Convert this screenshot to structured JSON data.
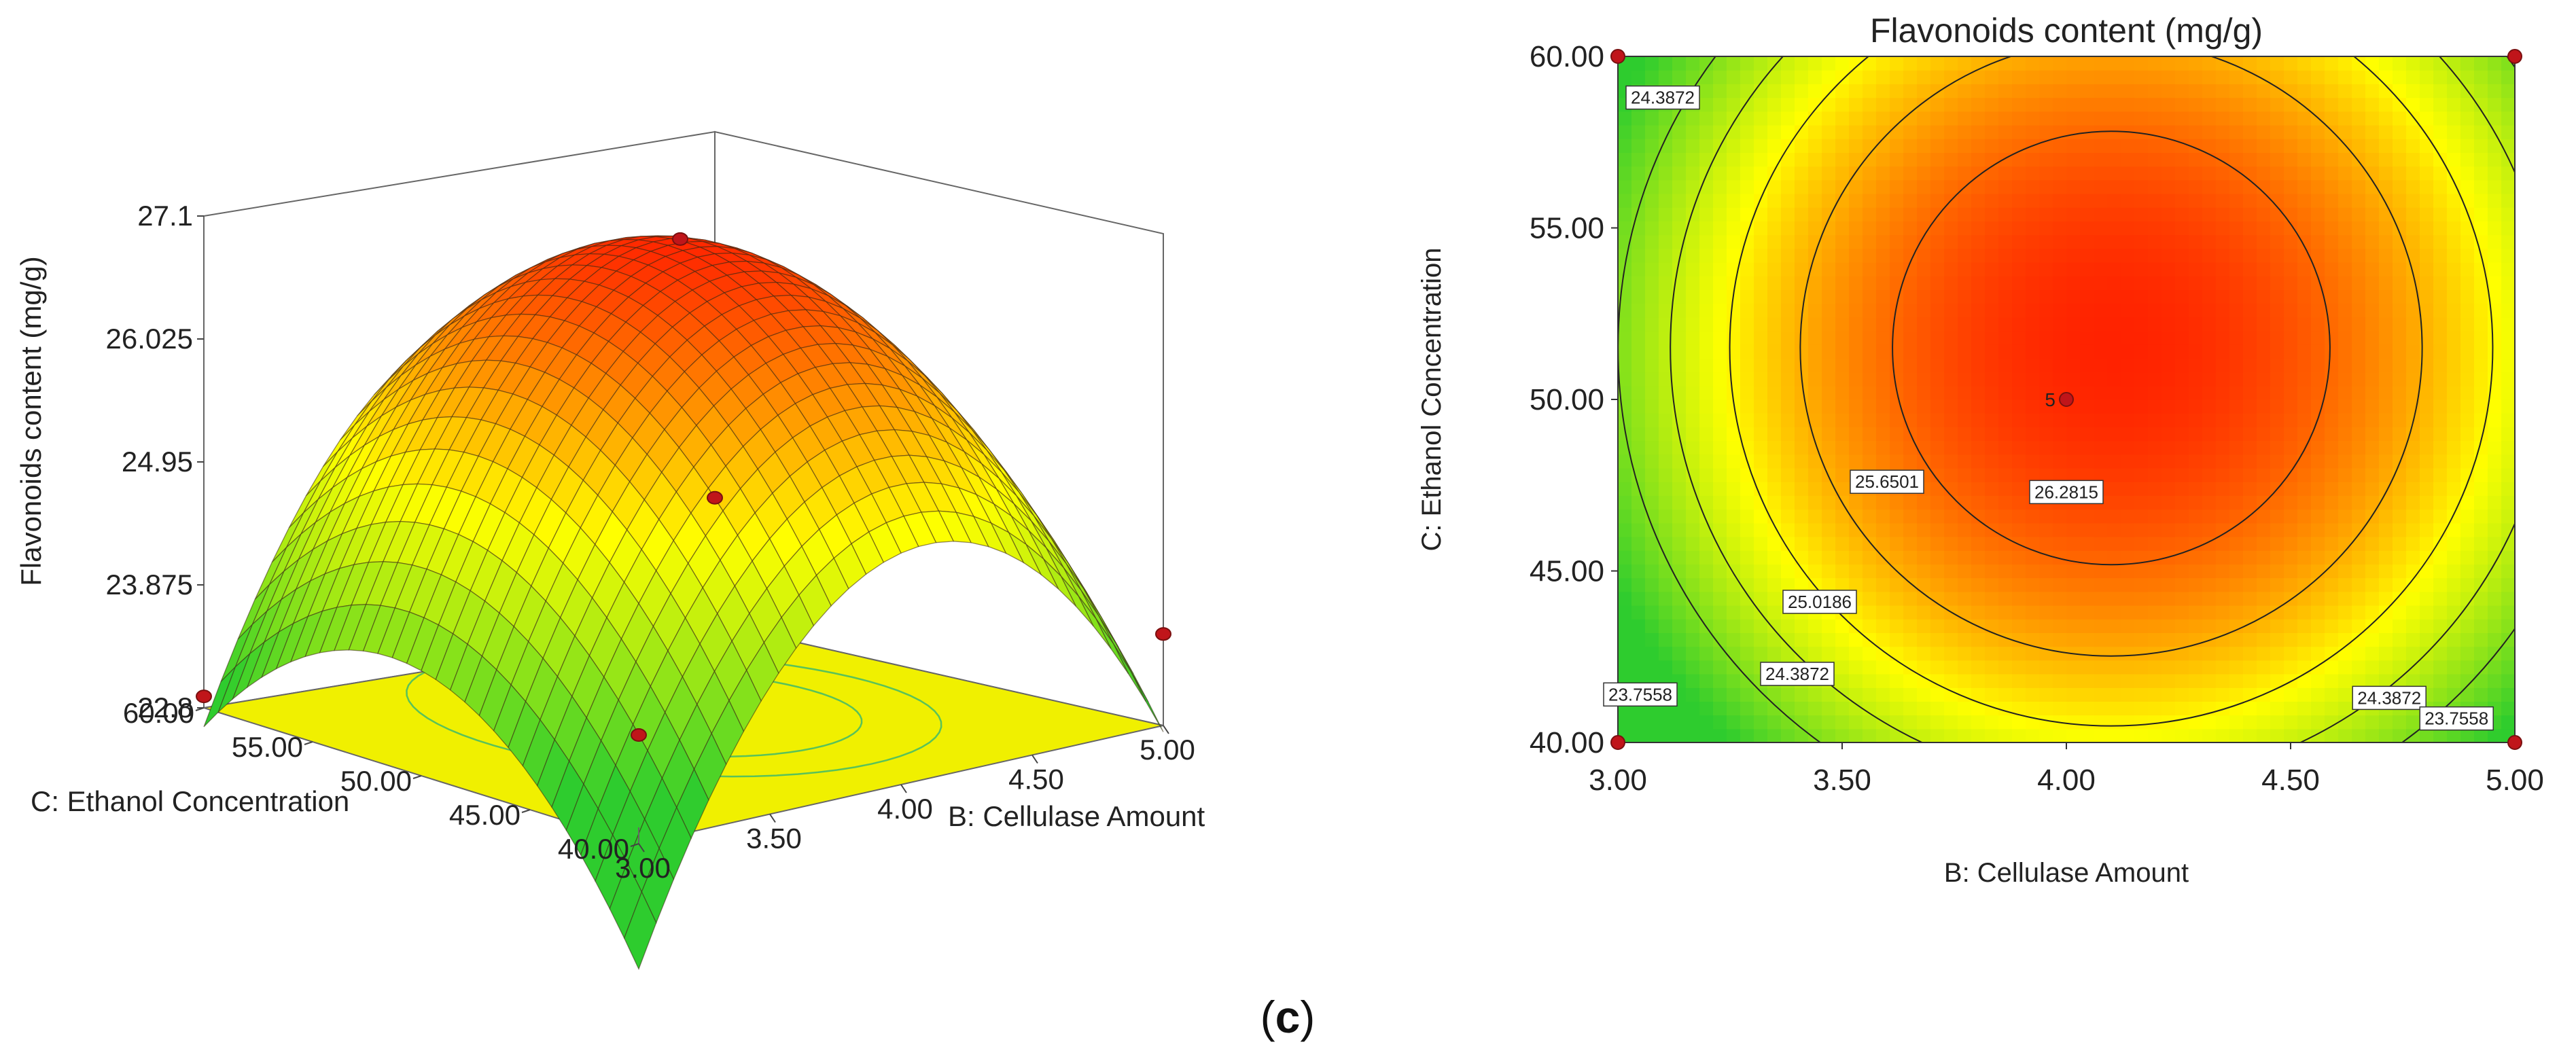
{
  "figure": {
    "label_paren_open": "(",
    "label_letter": "c",
    "label_paren_close": ")"
  },
  "chart_data": [
    {
      "type": "surface",
      "title": "",
      "xlabel": "B: Cellulase Amount",
      "ylabel": "C: Ethanol Concentration",
      "zlabel": "Flavonoids content (mg/g)",
      "x_ticks": [
        "3.00",
        "3.50",
        "4.00",
        "4.50",
        "5.00"
      ],
      "y_ticks": [
        "40.00",
        "45.00",
        "50.00",
        "55.00",
        "60.00"
      ],
      "z_ticks": [
        "22.8",
        "23.875",
        "24.95",
        "26.025",
        "27.1"
      ],
      "xlim": [
        3.0,
        5.0
      ],
      "ylim": [
        40.0,
        60.0
      ],
      "zlim": [
        22.8,
        27.1
      ],
      "model": {
        "x0": 4.1,
        "y0": 51.5,
        "peak": 26.9,
        "ax": 2.6,
        "ay": 0.0155
      },
      "design_points": [
        {
          "x": 4.0,
          "y": 50.0,
          "z": 27.05
        },
        {
          "x": 3.0,
          "y": 40.0,
          "z": 23.75
        },
        {
          "x": 5.0,
          "y": 60.0,
          "z": 23.9
        },
        {
          "x": 5.0,
          "y": 40.0,
          "z": 23.6
        },
        {
          "x": 3.0,
          "y": 60.0,
          "z": 22.9
        }
      ],
      "colors": {
        "low": "#2ecc2e",
        "mid": "#ffff00",
        "high": "#ff2200",
        "floor": "#f0f000"
      }
    },
    {
      "type": "contour",
      "title": "Flavonoids content (mg/g)",
      "xlabel": "B: Cellulase Amount",
      "ylabel": "C: Ethanol Concentration",
      "x_ticks": [
        "3.00",
        "3.50",
        "4.00",
        "4.50",
        "5.00"
      ],
      "y_ticks": [
        "40.00",
        "45.00",
        "50.00",
        "55.00",
        "60.00"
      ],
      "xlim": [
        3.0,
        5.0
      ],
      "ylim": [
        40.0,
        60.0
      ],
      "contour_levels": [
        {
          "value": "26.2815",
          "label_x": 4.0,
          "label_y": 47.3
        },
        {
          "value": "25.6501",
          "label_x": 3.6,
          "label_y": 47.6
        },
        {
          "value": "25.0186",
          "label_x": 3.45,
          "label_y": 44.1
        },
        {
          "value": "24.3872",
          "label_x": 3.4,
          "label_y": 42.0
        },
        {
          "value": "24.3872",
          "label_x": 3.1,
          "label_y": 58.8
        },
        {
          "value": "24.3872",
          "label_x": 4.72,
          "label_y": 41.3
        },
        {
          "value": "23.7558",
          "label_x": 3.05,
          "label_y": 41.4
        },
        {
          "value": "23.7558",
          "label_x": 4.87,
          "label_y": 40.7
        }
      ],
      "center_point": {
        "x": 4.0,
        "y": 50.0,
        "label": "5"
      },
      "corner_points": [
        {
          "x": 3.0,
          "y": 40.0
        },
        {
          "x": 3.0,
          "y": 60.0
        },
        {
          "x": 5.0,
          "y": 40.0
        },
        {
          "x": 5.0,
          "y": 60.0
        }
      ]
    }
  ]
}
